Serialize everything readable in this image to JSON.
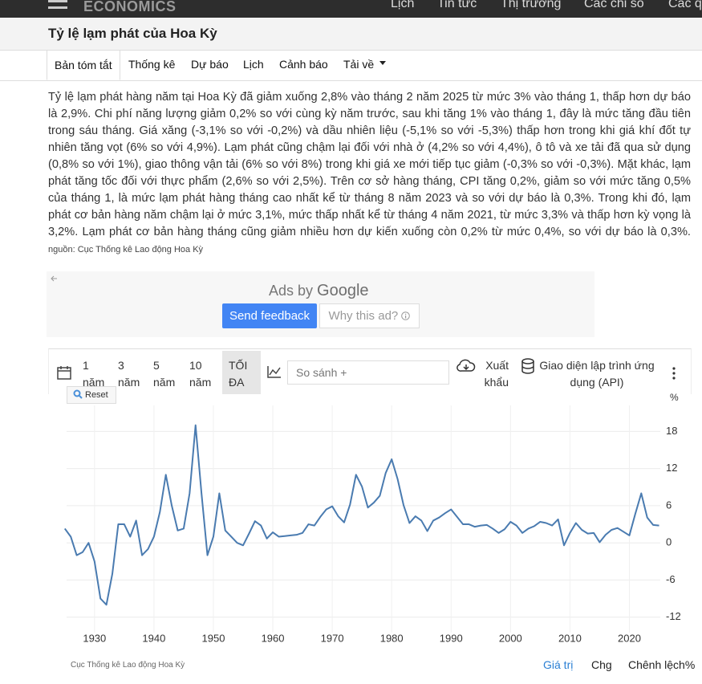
{
  "nav": {
    "logo": "ECONOMICS",
    "links": [
      "Lịch",
      "Tin tức",
      "Thị trường",
      "Các chỉ số",
      "Các quốc gia"
    ]
  },
  "header": {
    "title": "Tỷ lệ lạm phát của Hoa Kỳ"
  },
  "tabs": [
    "Bản tóm tắt",
    "Thống kê",
    "Dự báo",
    "Lịch",
    "Cảnh báo",
    "Tải về"
  ],
  "description": {
    "text": "Tỷ lệ lạm phát hàng năm tại Hoa Kỳ đã giảm xuống 2,8% vào tháng 2 năm 2025 từ mức 3% vào tháng 1, thấp hơn dự báo là 2,9%. Chi phí năng lượng giảm 0,2% so với cùng kỳ năm trước, sau khi tăng 1% vào tháng 1, đây là mức tăng đầu tiên trong sáu tháng. Giá xăng (-3,1% so với -0,2%) và dầu nhiên liệu (-5,1% so với -5,3%) thấp hơn trong khi giá khí đốt tự nhiên tăng vọt (6% so với 4,9%). Lạm phát cũng chậm lại đối với nhà ở (4,2% so với 4,4%), ô tô và xe tải đã qua sử dụng (0,8% so với 1%), giao thông vận tải (6% so với 8%) trong khi giá xe mới tiếp tục giảm (-0,3% so với -0,3%). Mặt khác, lạm phát tăng tốc đối với thực phẩm (2,6% so với 2,5%). Trên cơ sở hàng tháng, CPI tăng 0,2%, giảm so với mức tăng 0,5% của tháng 1, là mức lạm phát hàng tháng cao nhất kể từ tháng 8 năm 2023 và so với dự báo là 0,3%. Trong khi đó, lạm phát cơ bản hàng năm chậm lại ở mức 3,1%, mức thấp nhất kể từ tháng 4 năm 2021, từ mức 3,3% và thấp hơn kỳ vọng là 3,2%. Lạm phát cơ bản hàng tháng cũng giảm nhiều hơn dự kiến xuống còn 0,2% từ mức 0,4%, so với dự báo là 0,3%.",
    "source": "nguồn: Cục Thống kê Lao động Hoa Kỳ"
  },
  "ads": {
    "label": "Ads by",
    "brand": "Google",
    "feedback": "Send feedback",
    "why": "Why this ad?"
  },
  "toolbar": {
    "ranges": [
      "1 năm",
      "3 năm",
      "5 năm",
      "10 năm",
      "TỐI ĐA"
    ],
    "compare": "So sánh +",
    "export": "Xuất khẩu",
    "api": "Giao diện lập trình ứng dụng (API)",
    "reset": "Reset"
  },
  "chart_data": {
    "type": "line",
    "y_axis_label": "%",
    "x": [
      1925,
      1926,
      1927,
      1928,
      1929,
      1930,
      1931,
      1932,
      1933,
      1934,
      1935,
      1936,
      1937,
      1938,
      1939,
      1940,
      1941,
      1942,
      1943,
      1944,
      1945,
      1946,
      1947,
      1948,
      1949,
      1950,
      1951,
      1952,
      1953,
      1954,
      1955,
      1956,
      1957,
      1958,
      1959,
      1960,
      1961,
      1962,
      1963,
      1964,
      1965,
      1966,
      1967,
      1968,
      1969,
      1970,
      1971,
      1972,
      1973,
      1974,
      1975,
      1976,
      1977,
      1978,
      1979,
      1980,
      1981,
      1982,
      1983,
      1984,
      1985,
      1986,
      1987,
      1988,
      1989,
      1990,
      1991,
      1992,
      1993,
      1994,
      1995,
      1996,
      1997,
      1998,
      1999,
      2000,
      2001,
      2002,
      2003,
      2004,
      2005,
      2006,
      2007,
      2008,
      2009,
      2010,
      2011,
      2012,
      2013,
      2014,
      2015,
      2016,
      2017,
      2018,
      2019,
      2020,
      2021,
      2022,
      2023,
      2024,
      2025
    ],
    "series": [
      {
        "color": "#4a7bb0",
        "values": [
          2.3,
          1,
          -2,
          -1.5,
          0,
          -3,
          -9,
          -10,
          -5,
          3,
          3,
          1,
          3.6,
          -2,
          -1,
          1,
          5,
          11,
          6,
          2,
          2.3,
          8,
          19,
          8,
          -2,
          1,
          8,
          2,
          1,
          0,
          -0.4,
          1.5,
          3.5,
          2.8,
          0.7,
          1.7,
          1,
          1.1,
          1.2,
          1.3,
          1.6,
          3,
          2.8,
          4.2,
          5.4,
          5.9,
          4.3,
          3.3,
          6.2,
          11,
          9.1,
          5.7,
          6.5,
          7.6,
          11.3,
          13.5,
          10.3,
          6.1,
          3.2,
          4.3,
          3.6,
          1.9,
          3.6,
          4.1,
          4.8,
          5.4,
          4.2,
          3,
          3,
          2.6,
          2.8,
          2.9,
          2.3,
          1.6,
          2.2,
          3.4,
          2.8,
          1.6,
          2.3,
          2.7,
          3.4,
          3.2,
          2.8,
          3.8,
          -0.4,
          1.6,
          3.2,
          2.1,
          1.5,
          1.6,
          0.1,
          1.3,
          2.1,
          2.4,
          1.8,
          1.2,
          4.7,
          8,
          4.1,
          2.9,
          2.8
        ]
      }
    ],
    "xlim": [
      1925.3,
      2025.2
    ],
    "ylim": [
      -14.5,
      22.2
    ],
    "xticks": [
      1930,
      1940,
      1950,
      1960,
      1970,
      1980,
      1990,
      2000,
      2010,
      2020
    ],
    "yticks": [
      -12,
      -6,
      0,
      6,
      12,
      18
    ],
    "grid": true
  },
  "footer": {
    "source": "Cục Thống kê Lao động Hoa Kỳ",
    "links": [
      "Giá trị",
      "Chg",
      "Chênh lệch%"
    ]
  }
}
